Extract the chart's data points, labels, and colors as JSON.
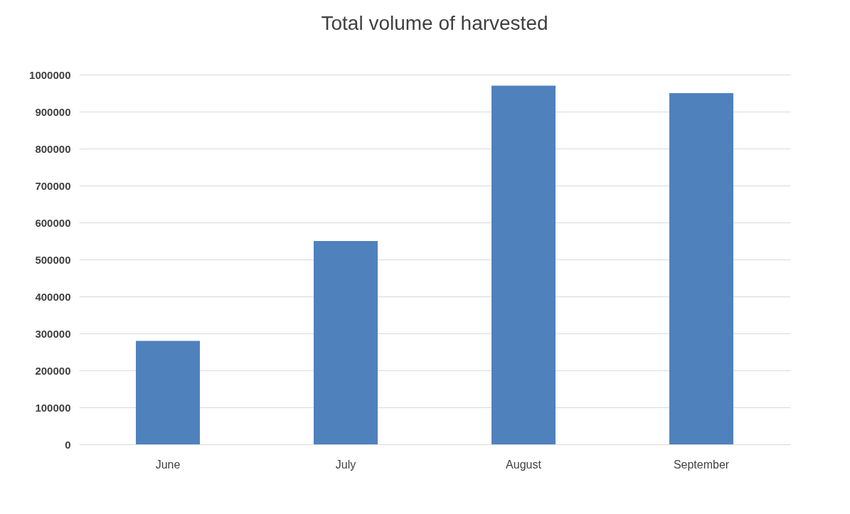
{
  "chart_data": {
    "type": "bar",
    "title": "Total volume of harvested",
    "categories": [
      "June",
      "July",
      "August",
      "September"
    ],
    "values": [
      280000,
      550000,
      970000,
      950000
    ],
    "color": "#4f81bd",
    "ylim": [
      0,
      1000000
    ],
    "yticks": [
      0,
      100000,
      200000,
      300000,
      400000,
      500000,
      600000,
      700000,
      800000,
      900000,
      1000000
    ],
    "grid": "y"
  }
}
